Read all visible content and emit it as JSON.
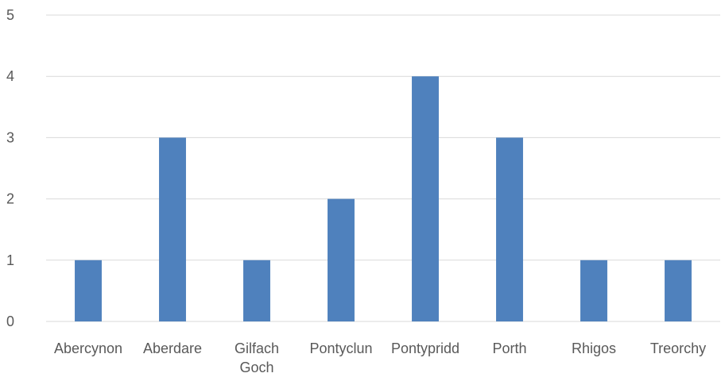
{
  "chart_data": {
    "type": "bar",
    "title": "",
    "xlabel": "",
    "ylabel": "",
    "categories": [
      "Abercynon",
      "Aberdare",
      "Gilfach Goch",
      "Pontyclun",
      "Pontypridd",
      "Porth",
      "Rhigos",
      "Treorchy"
    ],
    "values": [
      1,
      3,
      1,
      2,
      4,
      3,
      1,
      1
    ],
    "ylim": [
      0,
      5
    ],
    "yticks": [
      0,
      1,
      2,
      3,
      4,
      5
    ],
    "grid": true,
    "legend": "none",
    "colors": {
      "bar": "#4f81bd",
      "grid": "#d9d9d9",
      "text": "#595959"
    }
  }
}
